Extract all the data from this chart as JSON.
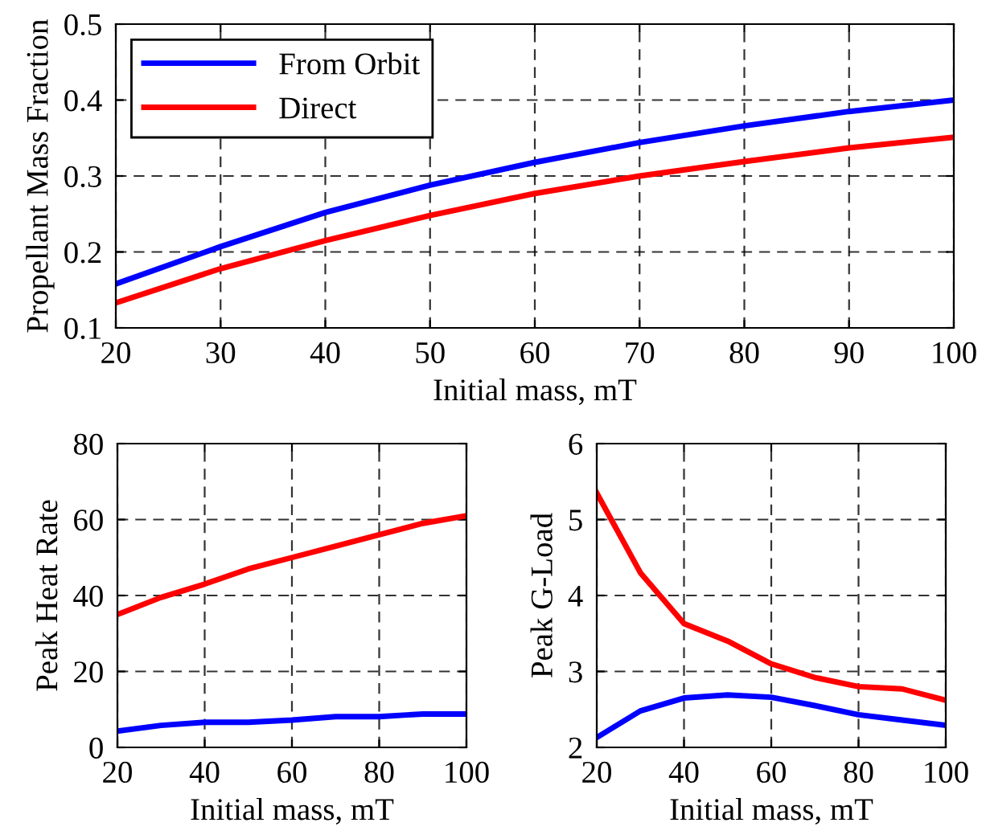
{
  "chart_data": [
    {
      "type": "line",
      "xlabel": "Initial mass, mT",
      "ylabel": "Propellant Mass Fraction",
      "x": [
        20,
        30,
        40,
        50,
        60,
        70,
        80,
        90,
        100
      ],
      "xlim": [
        20,
        100
      ],
      "xticks": [
        20,
        30,
        40,
        50,
        60,
        70,
        80,
        90,
        100
      ],
      "ylim": [
        0.1,
        0.5
      ],
      "yticks": [
        0.1,
        0.2,
        0.3,
        0.4,
        0.5
      ],
      "grid": true,
      "line_style": "solid",
      "legend": "top left",
      "series": [
        {
          "name": "From Orbit",
          "color": "#0000ff",
          "values": [
            0.158,
            0.207,
            0.252,
            0.288,
            0.318,
            0.344,
            0.366,
            0.385,
            0.4
          ]
        },
        {
          "name": "Direct",
          "color": "#ff0000",
          "values": [
            0.133,
            0.178,
            0.215,
            0.248,
            0.277,
            0.3,
            0.319,
            0.337,
            0.351
          ]
        }
      ]
    },
    {
      "type": "line",
      "xlabel": "Initial mass, mT",
      "ylabel": "Peak Heat Rate",
      "x": [
        20,
        30,
        40,
        50,
        60,
        70,
        80,
        90,
        100
      ],
      "xlim": [
        20,
        100
      ],
      "xticks": [
        20,
        40,
        60,
        80,
        100
      ],
      "ylim": [
        0,
        80
      ],
      "yticks": [
        0,
        20,
        40,
        60,
        80
      ],
      "grid": true,
      "line_style": "solid",
      "series": [
        {
          "color": "#0000ff",
          "values": [
            4.3,
            5.8,
            6.6,
            6.6,
            7.2,
            8.1,
            8.1,
            8.8,
            8.8
          ]
        },
        {
          "color": "#ff0000",
          "values": [
            35,
            39.5,
            43,
            47,
            50,
            53,
            56,
            59,
            61
          ]
        }
      ]
    },
    {
      "type": "line",
      "xlabel": "Initial mass, mT",
      "ylabel": "Peak G-Load",
      "x": [
        20,
        30,
        40,
        50,
        60,
        70,
        80,
        90,
        100
      ],
      "xlim": [
        20,
        100
      ],
      "xticks": [
        20,
        40,
        60,
        80,
        100
      ],
      "ylim": [
        2,
        6
      ],
      "yticks": [
        2,
        3,
        4,
        5,
        6
      ],
      "grid": true,
      "line_style": "solid",
      "series": [
        {
          "color": "#0000ff",
          "values": [
            2.13,
            2.48,
            2.65,
            2.69,
            2.66,
            2.55,
            2.43,
            2.36,
            2.29
          ]
        },
        {
          "color": "#ff0000",
          "values": [
            5.35,
            4.3,
            3.63,
            3.4,
            3.1,
            2.92,
            2.8,
            2.77,
            2.62
          ]
        }
      ]
    }
  ]
}
